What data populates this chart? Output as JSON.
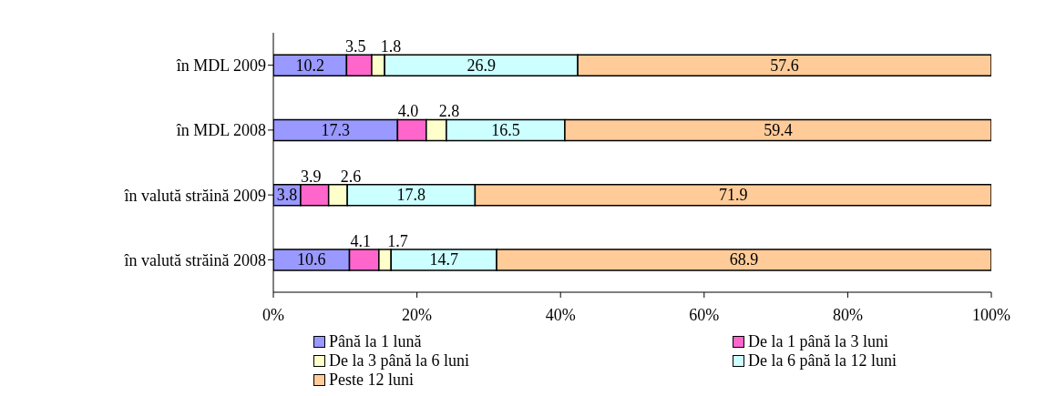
{
  "chart_data": {
    "type": "bar",
    "orientation": "horizontal",
    "stacked": true,
    "grid": false,
    "legend": "bottom",
    "categories": [
      "în MDL 2009",
      "în MDL 2008",
      "în valută străină 2009",
      "în valută străină 2008"
    ],
    "series": [
      {
        "name": "Până la 1 lună",
        "color": "#9999ff",
        "values": [
          10.2,
          17.3,
          3.8,
          10.6
        ],
        "value_labels": [
          "10.2",
          "17.3",
          "3.8",
          "10.6"
        ]
      },
      {
        "name": "De la 1 până la 3 luni",
        "color": "#ff66cc",
        "values": [
          3.5,
          4.0,
          3.9,
          4.1
        ],
        "value_labels": [
          "3.5",
          "4.0",
          "3.9",
          "4.1"
        ]
      },
      {
        "name": "De la 3 până la 6 luni",
        "color": "#ffffcc",
        "values": [
          1.8,
          2.8,
          2.6,
          1.7
        ],
        "value_labels": [
          "1.8",
          "2.8",
          "2.6",
          "1.7"
        ]
      },
      {
        "name": "De la 6 până la 12 luni",
        "color": "#ccffff",
        "values": [
          26.9,
          16.5,
          17.8,
          14.7
        ],
        "value_labels": [
          "26.9",
          "16.5",
          "17.8",
          "14.7"
        ]
      },
      {
        "name": "Peste 12 luni",
        "color": "#ffcc99",
        "values": [
          57.6,
          59.4,
          71.9,
          68.9
        ],
        "value_labels": [
          "57.6",
          "59.4",
          "71.9",
          "68.9"
        ]
      }
    ],
    "xlim": [
      0,
      100
    ],
    "xticks": [
      {
        "value": 0,
        "label": "0%"
      },
      {
        "value": 20,
        "label": "20%"
      },
      {
        "value": 40,
        "label": "40%"
      },
      {
        "value": 60,
        "label": "60%"
      },
      {
        "value": 80,
        "label": "80%"
      },
      {
        "value": 100,
        "label": "100%"
      }
    ]
  }
}
